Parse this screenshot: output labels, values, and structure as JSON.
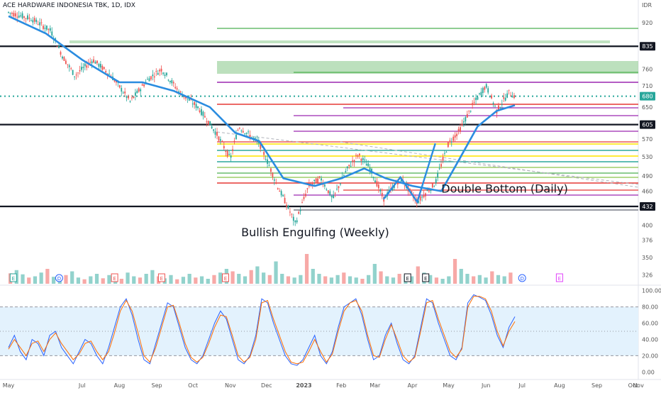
{
  "symbol": {
    "title": "ACE HARDWARE INDONESIA TBK, 1D, IDX",
    "currency": "IDR"
  },
  "colors": {
    "up": "#26a69a",
    "down": "#ef5350",
    "ma": "#2a8ce0",
    "black": "#131722",
    "green_line": "#4caf50",
    "green_zone": "#a5d6a7",
    "purple": "#9c27b0",
    "red": "#e53935",
    "yellow": "#ffeb3b",
    "teal": "#009688",
    "lime": "#8bc34a",
    "grey": "#787b86",
    "stoch_k": "#2962ff",
    "stoch_d": "#ff6d00",
    "stoch_bg": "#e3f2fd",
    "pattern": "#2a8ce0",
    "pink": "#e040fb"
  },
  "chart_data": [
    {
      "type": "candlestick",
      "title": "ACE HARDWARE INDONESIA TBK, 1D, IDX",
      "ylabel": "IDR",
      "ylim": [
        310,
        950
      ],
      "y_scale": "log",
      "y_ticks": [
        920,
        835,
        760,
        710,
        680,
        650,
        605,
        570,
        530,
        490,
        460,
        432,
        400,
        376,
        350,
        326
      ],
      "x_ticks": [
        "May",
        "Jul",
        "Aug",
        "Sep",
        "Oct",
        "Nov",
        "Dec",
        "2023",
        "Feb",
        "Mar",
        "Apr",
        "May",
        "Jun",
        "Jul",
        "Aug",
        "Sep",
        "Oct",
        "Nov"
      ],
      "price_badges": [
        {
          "label": "835",
          "value": 835,
          "style": "black"
        },
        {
          "label": "680",
          "value": 680,
          "style": "teal"
        },
        {
          "label": "605",
          "value": 605,
          "style": "black"
        },
        {
          "label": "432",
          "value": 432,
          "style": "black"
        }
      ],
      "key_levels": [
        835,
        605,
        432
      ],
      "current_price": 680,
      "price_path": [
        {
          "x": "2022-05-01",
          "y": 960
        },
        {
          "x": "2022-05-20",
          "y": 935
        },
        {
          "x": "2022-06-05",
          "y": 890
        },
        {
          "x": "2022-06-15",
          "y": 800
        },
        {
          "x": "2022-06-25",
          "y": 740
        },
        {
          "x": "2022-07-10",
          "y": 790
        },
        {
          "x": "2022-07-25",
          "y": 740
        },
        {
          "x": "2022-08-10",
          "y": 665
        },
        {
          "x": "2022-08-25",
          "y": 730
        },
        {
          "x": "2022-09-05",
          "y": 760
        },
        {
          "x": "2022-09-20",
          "y": 690
        },
        {
          "x": "2022-10-05",
          "y": 650
        },
        {
          "x": "2022-10-20",
          "y": 585
        },
        {
          "x": "2022-11-01",
          "y": 525
        },
        {
          "x": "2022-11-08",
          "y": 600
        },
        {
          "x": "2022-11-25",
          "y": 560
        },
        {
          "x": "2022-12-10",
          "y": 470
        },
        {
          "x": "2022-12-25",
          "y": 402
        },
        {
          "x": "2023-01-05",
          "y": 470
        },
        {
          "x": "2023-01-15",
          "y": 485
        },
        {
          "x": "2023-01-25",
          "y": 445
        },
        {
          "x": "2023-02-05",
          "y": 500
        },
        {
          "x": "2023-02-15",
          "y": 535
        },
        {
          "x": "2023-02-25",
          "y": 505
        },
        {
          "x": "2023-03-08",
          "y": 445
        },
        {
          "x": "2023-03-22",
          "y": 485
        },
        {
          "x": "2023-04-05",
          "y": 440
        },
        {
          "x": "2023-04-20",
          "y": 475
        },
        {
          "x": "2023-05-01",
          "y": 560
        },
        {
          "x": "2023-05-10",
          "y": 590
        },
        {
          "x": "2023-05-22",
          "y": 660
        },
        {
          "x": "2023-06-01",
          "y": 710
        },
        {
          "x": "2023-06-10",
          "y": 640
        },
        {
          "x": "2023-06-20",
          "y": 690
        },
        {
          "x": "2023-06-25",
          "y": 680
        }
      ],
      "moving_average": [
        {
          "x": "2022-05-01",
          "y": 945
        },
        {
          "x": "2022-06-01",
          "y": 880
        },
        {
          "x": "2022-07-01",
          "y": 790
        },
        {
          "x": "2022-08-01",
          "y": 720
        },
        {
          "x": "2022-08-20",
          "y": 720
        },
        {
          "x": "2022-09-15",
          "y": 695
        },
        {
          "x": "2022-10-15",
          "y": 650
        },
        {
          "x": "2022-11-05",
          "y": 585
        },
        {
          "x": "2022-11-25",
          "y": 565
        },
        {
          "x": "2022-12-15",
          "y": 485
        },
        {
          "x": "2023-01-10",
          "y": 470
        },
        {
          "x": "2023-02-01",
          "y": 485
        },
        {
          "x": "2023-02-20",
          "y": 505
        },
        {
          "x": "2023-03-10",
          "y": 485
        },
        {
          "x": "2023-04-01",
          "y": 470
        },
        {
          "x": "2023-04-25",
          "y": 460
        },
        {
          "x": "2023-05-10",
          "y": 525
        },
        {
          "x": "2023-05-25",
          "y": 600
        },
        {
          "x": "2023-06-10",
          "y": 640
        },
        {
          "x": "2023-06-25",
          "y": 655
        }
      ],
      "annotations": [
        {
          "text": "Bullish Engulfing (Weekly)",
          "x": "2022-11-10",
          "y": 382
        },
        {
          "text": "Double Bottom (Daily)",
          "x": "2023-04-25",
          "y": 457
        }
      ],
      "double_bottom_pattern": [
        {
          "x": "2023-03-08",
          "y": 445
        },
        {
          "x": "2023-03-22",
          "y": 487
        },
        {
          "x": "2023-04-05",
          "y": 440
        },
        {
          "x": "2023-04-20",
          "y": 560
        }
      ],
      "volume": {
        "ylim": [
          0,
          100
        ],
        "bars": [
          42,
          55,
          38,
          25,
          30,
          45,
          60,
          28,
          20,
          35,
          50,
          25,
          18,
          30,
          40,
          22,
          35,
          28,
          20,
          45,
          30,
          25,
          40,
          55,
          30,
          22,
          35,
          18,
          28,
          40,
          25,
          30,
          20,
          35,
          45,
          60,
          50,
          40,
          30,
          55,
          70,
          45,
          35,
          90,
          40,
          30,
          25,
          35,
          120,
          60,
          40,
          30,
          25,
          35,
          45,
          30,
          25,
          20,
          35,
          80,
          50,
          30,
          25,
          40,
          35,
          30,
          70,
          45,
          35,
          25,
          20,
          30,
          100,
          60,
          40,
          30,
          35,
          25,
          50,
          35,
          30,
          45
        ]
      },
      "event_markers": [
        {
          "label": "E",
          "x": "2022-05-05",
          "kind": "earnings"
        },
        {
          "label": "D",
          "x": "2022-06-12",
          "kind": "dividend"
        },
        {
          "label": "E",
          "x": "2022-07-28",
          "kind": "earnings-red"
        },
        {
          "label": "E",
          "x": "2022-09-05",
          "kind": "earnings-red"
        },
        {
          "label": "E",
          "x": "2022-10-28",
          "kind": "earnings-red"
        },
        {
          "label": "E",
          "x": "2023-03-28",
          "kind": "earnings-dark"
        },
        {
          "label": "E",
          "x": "2023-04-12",
          "kind": "earnings-dark"
        },
        {
          "label": "D",
          "x": "2023-07-01",
          "kind": "dividend"
        },
        {
          "label": "E",
          "x": "2023-08-01",
          "kind": "earnings-pink"
        }
      ]
    },
    {
      "type": "line",
      "name": "stochastic",
      "ylim": [
        -5,
        105
      ],
      "y_ticks": [
        100.0,
        80.0,
        60.0,
        40.0,
        20.0,
        0.0
      ],
      "y_tick_labels": [
        "100.00",
        "80.00",
        "60.00",
        "40.00",
        "20.00",
        "0.00"
      ],
      "band": [
        20,
        80
      ],
      "series": [
        {
          "values": [
            30,
            45,
            25,
            15,
            40,
            35,
            20,
            45,
            50,
            30,
            20,
            10,
            25,
            40,
            35,
            20,
            10,
            30,
            55,
            80,
            90,
            70,
            40,
            15,
            10,
            35,
            60,
            85,
            80,
            55,
            30,
            15,
            10,
            20,
            40,
            60,
            75,
            65,
            40,
            15,
            10,
            20,
            45,
            90,
            85,
            60,
            40,
            20,
            10,
            8,
            15,
            30,
            45,
            20,
            10,
            25,
            55,
            80,
            85,
            90,
            70,
            40,
            15,
            20,
            45,
            60,
            35,
            15,
            10,
            20,
            55,
            90,
            85,
            60,
            40,
            20,
            15,
            30,
            85,
            95,
            92,
            88,
            70,
            45,
            30,
            55,
            68
          ]
        },
        {
          "values": [
            28,
            40,
            30,
            20,
            35,
            38,
            25,
            40,
            48,
            35,
            25,
            15,
            22,
            35,
            38,
            25,
            15,
            25,
            48,
            75,
            88,
            75,
            48,
            20,
            12,
            30,
            55,
            80,
            82,
            60,
            35,
            18,
            12,
            18,
            35,
            55,
            70,
            68,
            45,
            20,
            12,
            18,
            40,
            85,
            88,
            65,
            45,
            25,
            12,
            10,
            12,
            25,
            40,
            25,
            12,
            22,
            50,
            75,
            85,
            88,
            75,
            45,
            20,
            18,
            40,
            58,
            40,
            20,
            12,
            18,
            50,
            85,
            88,
            65,
            45,
            25,
            18,
            28,
            80,
            93,
            93,
            90,
            75,
            50,
            32,
            50,
            62
          ]
        }
      ]
    }
  ]
}
